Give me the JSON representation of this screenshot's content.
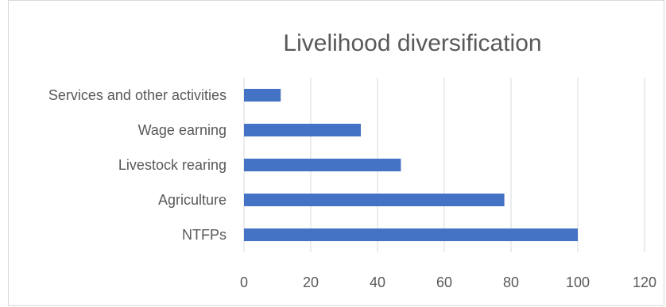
{
  "chart_data": {
    "type": "bar",
    "orientation": "horizontal",
    "title": "Livelihood diversification",
    "categories": [
      "Services and other activities",
      "Wage earning",
      "Livestock rearing",
      "Agriculture",
      "NTFPs"
    ],
    "values": [
      11,
      35,
      47,
      78,
      100
    ],
    "xlim": [
      0,
      120
    ],
    "xticks": [
      0,
      20,
      40,
      60,
      80,
      100,
      120
    ],
    "grid": true,
    "legend": "none",
    "bar_color": "#4472c4"
  }
}
